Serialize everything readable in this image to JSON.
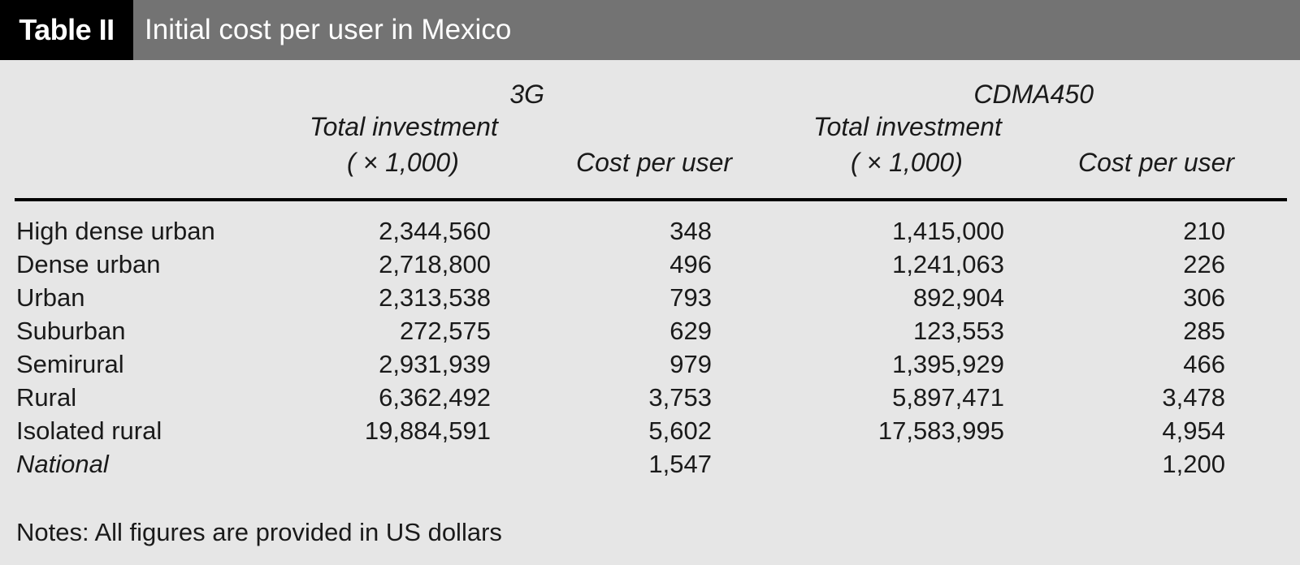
{
  "title": {
    "label": "Table II",
    "text": "Initial cost per user in Mexico"
  },
  "header": {
    "group_3g": "3G",
    "group_cdma": "CDMA450",
    "total_investment": "Total investment",
    "multiplier": "( × 1,000)",
    "cost_per_user": "Cost per user"
  },
  "rows": [
    {
      "label": "High dense urban",
      "inv_3g": "2,344,560",
      "cpu_3g": "348",
      "inv_cdma": "1,415,000",
      "cpu_cdma": "210"
    },
    {
      "label": "Dense urban",
      "inv_3g": "2,718,800",
      "cpu_3g": "496",
      "inv_cdma": "1,241,063",
      "cpu_cdma": "226"
    },
    {
      "label": "Urban",
      "inv_3g": "2,313,538",
      "cpu_3g": "793",
      "inv_cdma": "892,904",
      "cpu_cdma": "306"
    },
    {
      "label": "Suburban",
      "inv_3g": "272,575",
      "cpu_3g": "629",
      "inv_cdma": "123,553",
      "cpu_cdma": "285"
    },
    {
      "label": "Semirural",
      "inv_3g": "2,931,939",
      "cpu_3g": "979",
      "inv_cdma": "1,395,929",
      "cpu_cdma": "466"
    },
    {
      "label": "Rural",
      "inv_3g": "6,362,492",
      "cpu_3g": "3,753",
      "inv_cdma": "5,897,471",
      "cpu_cdma": "3,478"
    },
    {
      "label": "Isolated rural",
      "inv_3g": "19,884,591",
      "cpu_3g": "5,602",
      "inv_cdma": "17,583,995",
      "cpu_cdma": "4,954"
    },
    {
      "label": "National",
      "inv_3g": "",
      "cpu_3g": "1,547",
      "inv_cdma": "",
      "cpu_cdma": "1,200"
    }
  ],
  "notes": "Notes: All figures are provided in US dollars"
}
